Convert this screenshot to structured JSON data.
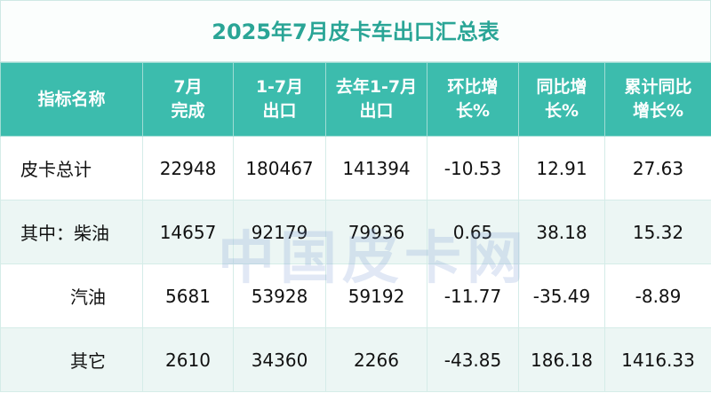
{
  "title": "2025年7月皮卡车出口汇总表",
  "watermark": "中国皮卡网",
  "table": {
    "header": [
      "指标名称",
      "7月\n完成",
      "1-7月\n出口",
      "去年1-7月\n出口",
      "环比增\n长%",
      "同比增\n长%",
      "累计同比\n增长%"
    ],
    "rows": [
      [
        "皮卡总计",
        22948,
        180467,
        141394,
        -10.53,
        12.91,
        27.63
      ],
      [
        "其中：柴油",
        14657,
        92179,
        79936,
        0.65,
        38.18,
        15.32
      ],
      [
        "汽油",
        5681,
        53928,
        59192,
        -11.77,
        -35.49,
        -8.89
      ],
      [
        "其它",
        2610,
        34360,
        2266,
        -43.85,
        186.18,
        1416.33
      ]
    ]
  }
}
